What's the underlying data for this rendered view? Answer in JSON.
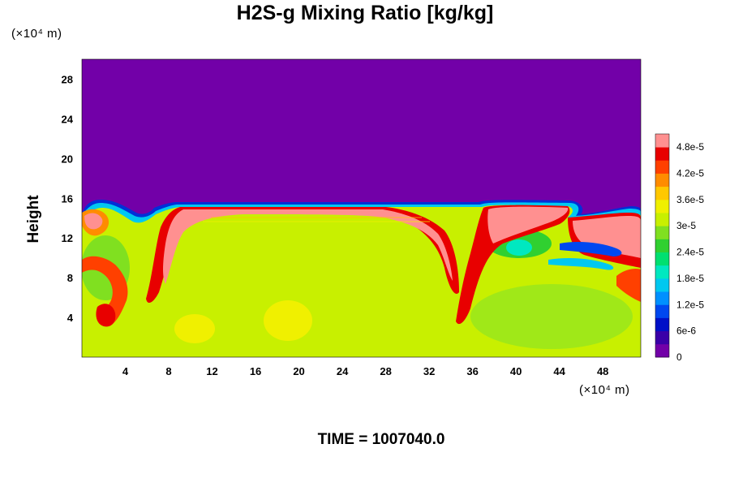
{
  "chart_data": {
    "type": "heatmap",
    "title": "H2S-g Mixing Ratio [kg/kg]",
    "ylabel": "Height",
    "x_unit_label": "(×10⁴ m)",
    "y_unit_label": "(×10⁴ m)",
    "footer": "TIME = 1007040.0",
    "xlim": [
      0,
      51.5
    ],
    "ylim": [
      0,
      30
    ],
    "x_ticks": [
      "4",
      "8",
      "12",
      "16",
      "20",
      "24",
      "28",
      "32",
      "36",
      "40",
      "44",
      "48"
    ],
    "x_tick_values": [
      4,
      8,
      12,
      16,
      20,
      24,
      28,
      32,
      36,
      40,
      44,
      48
    ],
    "y_ticks": [
      "4",
      "8",
      "12",
      "16",
      "20",
      "24",
      "28"
    ],
    "y_tick_values": [
      4,
      8,
      12,
      16,
      20,
      24,
      28
    ],
    "colorbar": {
      "min": 0,
      "max": 5.1e-05,
      "labels": [
        "0",
        "6e-6",
        "1.2e-5",
        "1.8e-5",
        "2.4e-5",
        "3e-5",
        "3.6e-5",
        "4.2e-5",
        "4.8e-5"
      ],
      "label_values": [
        0,
        6e-06,
        1.2e-05,
        1.8e-05,
        2.4e-05,
        3e-05,
        3.6e-05,
        4.2e-05,
        4.8e-05
      ],
      "colors": [
        "#7200a8",
        "#3a00a8",
        "#0010c8",
        "#0048f0",
        "#0090ff",
        "#00c8f0",
        "#00e8c0",
        "#00e070",
        "#30d030",
        "#80e020",
        "#c8f000",
        "#f0f000",
        "#ffc800",
        "#ff8c00",
        "#ff4000",
        "#e80000",
        "#ff9090"
      ]
    },
    "field_summary": {
      "background_value": 0,
      "interior_value": 3.3e-05,
      "cloud_top_height": 15.5,
      "high_value_regions": [
        {
          "name": "upper-boundary-layer",
          "value": 5e-05
        },
        {
          "name": "right-side-cloud",
          "value": 5e-05
        },
        {
          "name": "left-plume",
          "value": 4.6e-05
        }
      ]
    }
  }
}
